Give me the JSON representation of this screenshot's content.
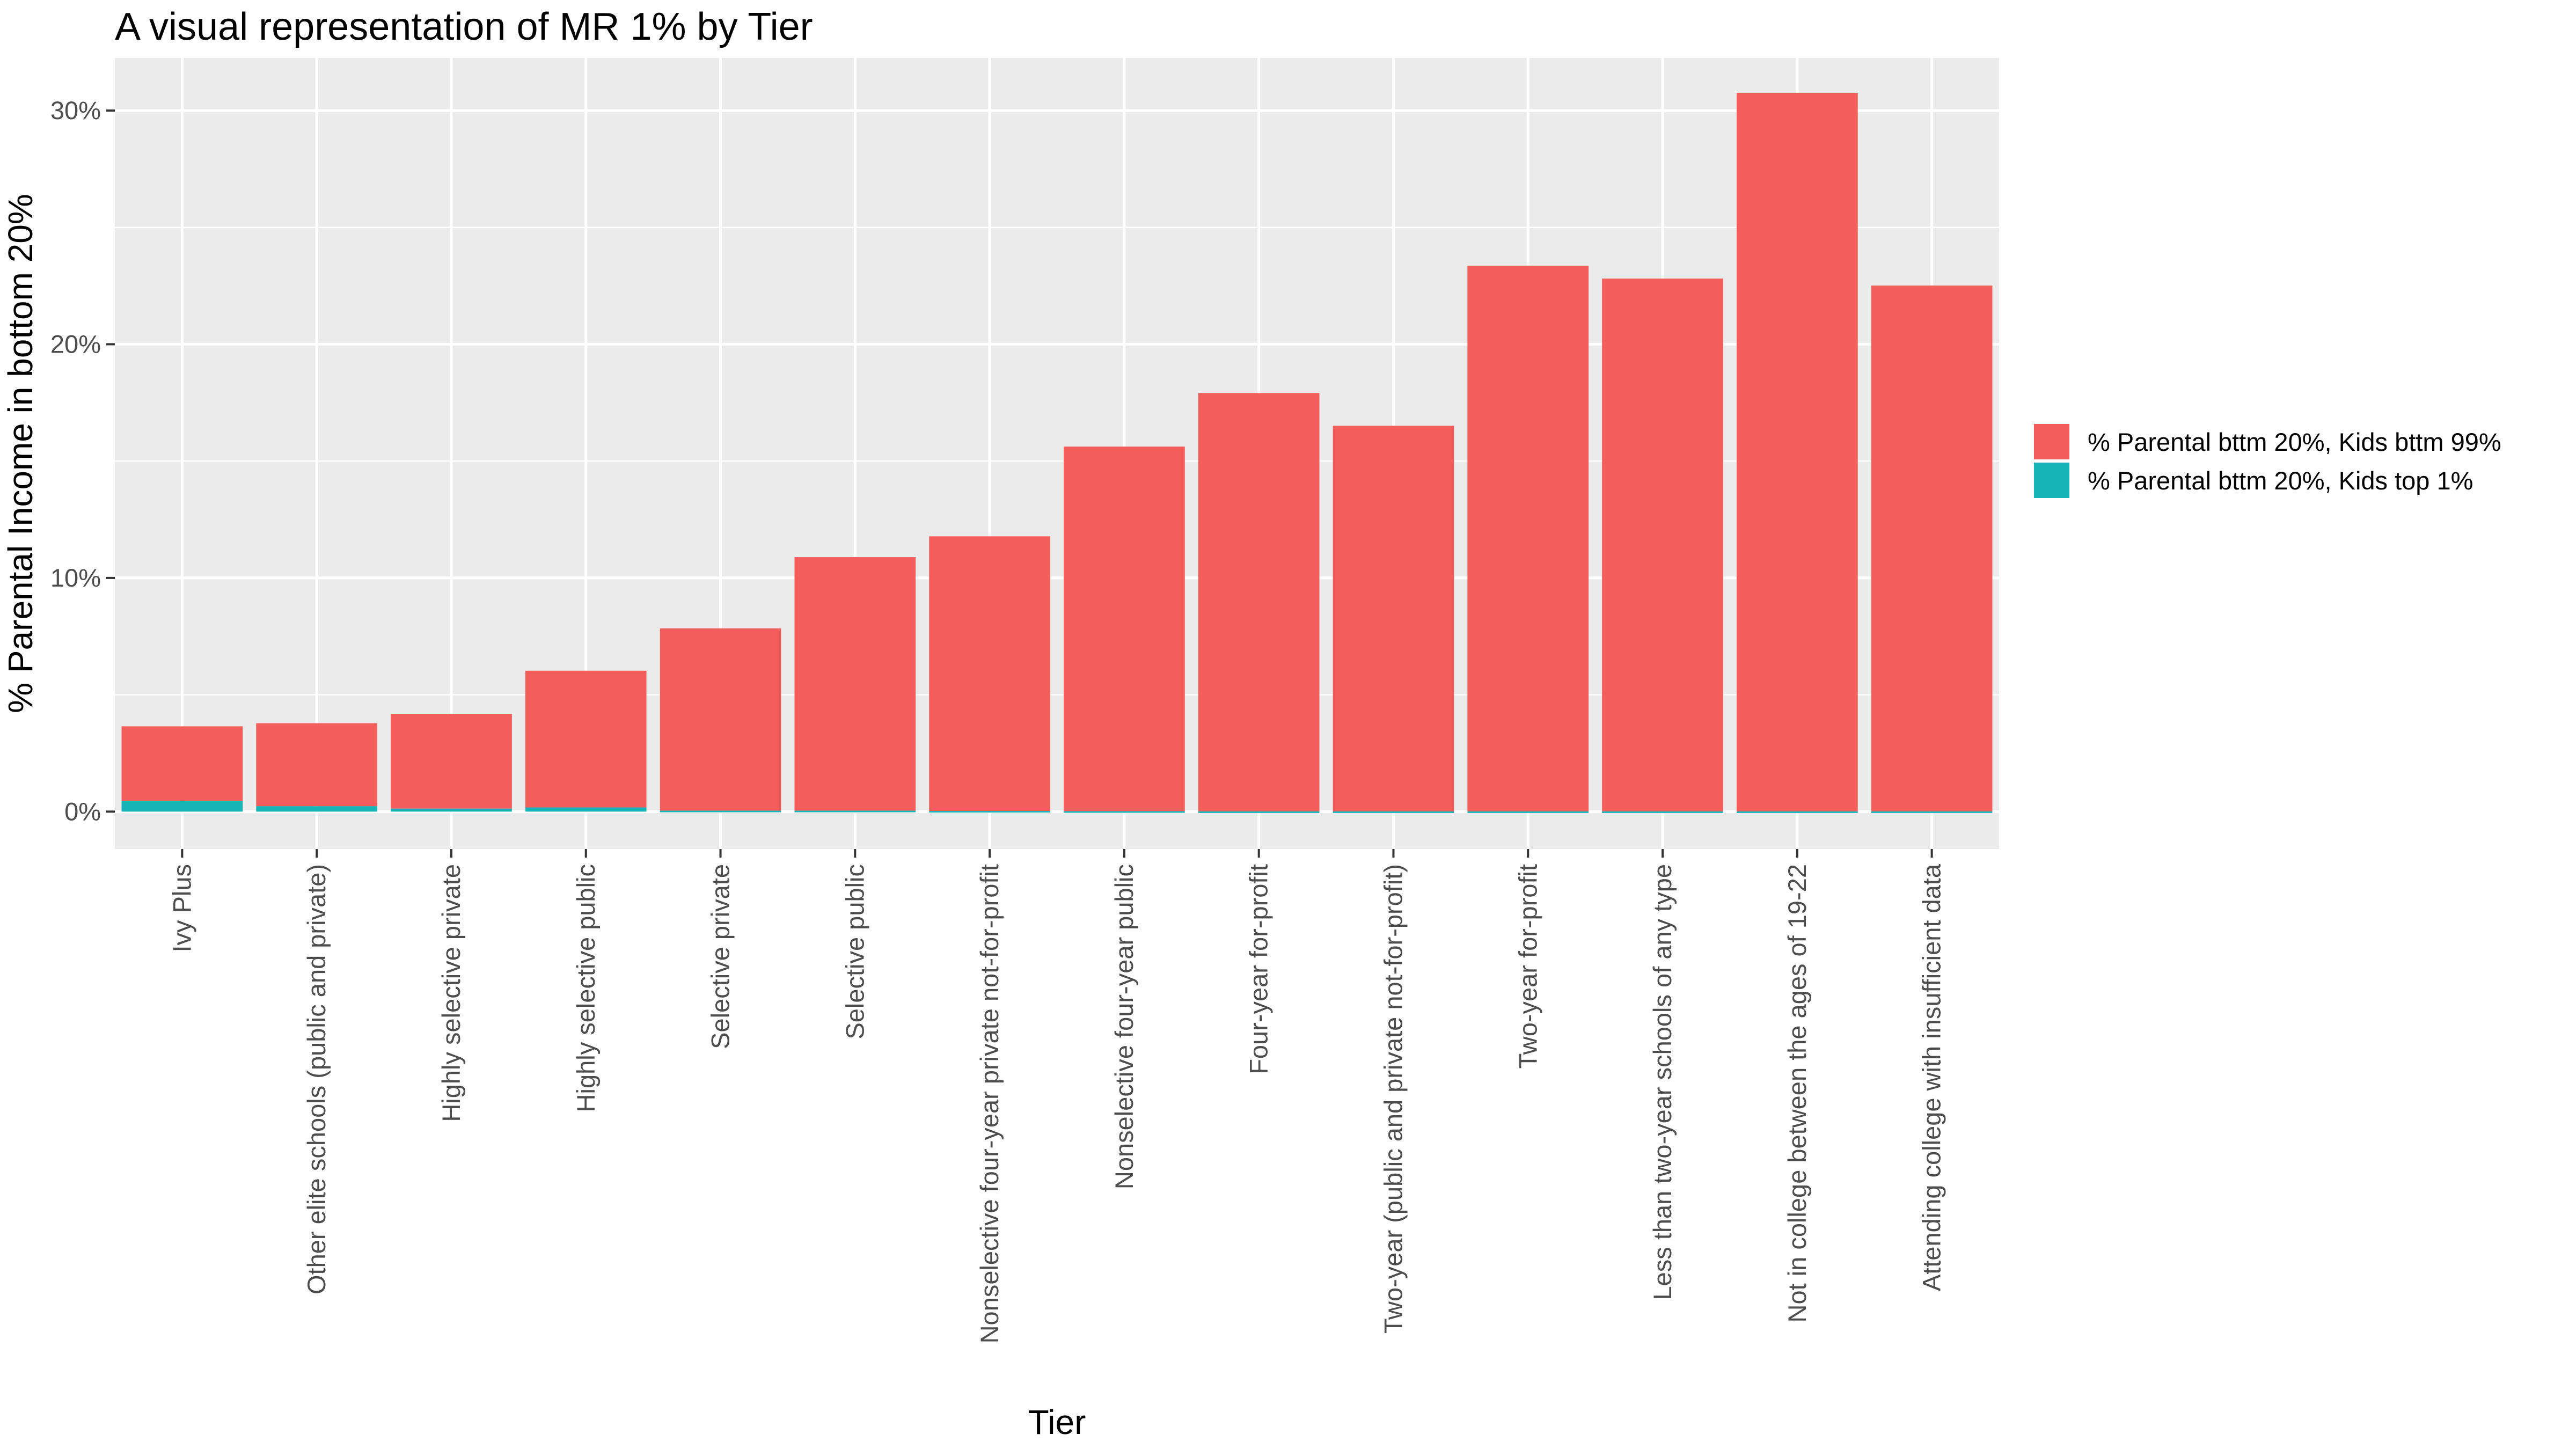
{
  "chart_data": {
    "type": "bar",
    "stacked": true,
    "title": "A visual representation of MR 1% by Tier",
    "xlabel": "Tier",
    "ylabel": "% Parental Income in bottom 20%",
    "ylim": [
      -0.016,
      0.3225
    ],
    "yticks": [
      0,
      0.1,
      0.2,
      0.3
    ],
    "ytick_labels": [
      "0%",
      "10%",
      "20%",
      "30%"
    ],
    "grid": true,
    "legend_position": "right",
    "categories": [
      "Ivy Plus",
      "Other elite schools (public and private)",
      "Highly selective private",
      "Highly selective public",
      "Selective private",
      "Selective public",
      "Nonselective four-year private not-for-profit",
      "Nonselective four-year public",
      "Four-year for-profit",
      "Two-year (public and private not-for-profit)",
      "Two-year for-profit",
      "Less than two-year schools of any type",
      "Not in college between the ages of 19-22",
      "Attending college with insufficient data"
    ],
    "series": [
      {
        "name": "% Parental bttm 20%, Kids bttm 99%",
        "color": "#F35E5A",
        "values": [
          0.032,
          0.0355,
          0.0405,
          0.0585,
          0.078,
          0.1085,
          0.1175,
          0.156,
          0.179,
          0.165,
          0.2335,
          0.228,
          0.3075,
          0.225
        ]
      },
      {
        "name": "% Parental bttm 20%, Kids top 1%",
        "color": "#17B3B7",
        "values": [
          0.0045,
          0.0023,
          0.0013,
          0.0018,
          0.0004,
          0.0004,
          0.0003,
          0.0002,
          0.0001,
          0.0001,
          0.0001,
          0.0001,
          0.0001,
          0.0001
        ]
      }
    ]
  }
}
